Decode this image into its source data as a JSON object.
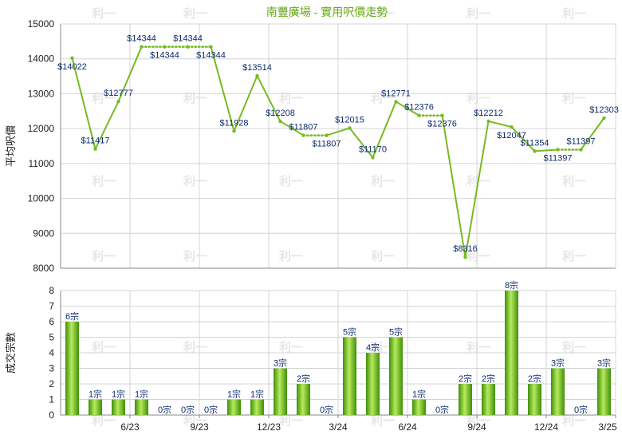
{
  "title": "南豐廣場 - 實用呎價走勢",
  "watermark": "利一",
  "colors": {
    "line": "#77bb22",
    "title": "#66aa11",
    "bar_light": "#b8ea5c",
    "bar_dark": "#3f8f0c",
    "grid": "#d4d4d4",
    "label": "#0b2a70",
    "axis_text": "#222222"
  },
  "chart_data": [
    {
      "type": "line",
      "title": "南豐廣場 - 實用呎價走勢",
      "ylabel": "平均呎價",
      "ylim": [
        8000,
        15000
      ],
      "yticks": [
        8000,
        9000,
        10000,
        11000,
        12000,
        13000,
        14000,
        15000
      ],
      "grid": true,
      "x_months": [
        1,
        2,
        3,
        4,
        5,
        6,
        7,
        8,
        9,
        10,
        11,
        12,
        13,
        14,
        15,
        16,
        17,
        18,
        19,
        20,
        21,
        22,
        23,
        24
      ],
      "points": [
        {
          "m": 1,
          "v": 14022,
          "label": "$14022",
          "pos": "below"
        },
        {
          "m": 2,
          "v": 11417,
          "label": "$11417",
          "pos": "above"
        },
        {
          "m": 3,
          "v": 12777,
          "label": "$12777",
          "pos": "above"
        },
        {
          "m": 4,
          "v": 14344,
          "label": "$14344",
          "pos": "above"
        },
        {
          "m": 5,
          "v": 14344,
          "label": "$14344",
          "pos": "below"
        },
        {
          "m": 6,
          "v": 14344,
          "label": "$14344",
          "pos": "above"
        },
        {
          "m": 7,
          "v": 14344,
          "label": "$14344",
          "pos": "below"
        },
        {
          "m": 8,
          "v": 11928,
          "label": "$11928",
          "pos": "above"
        },
        {
          "m": 9,
          "v": 13514,
          "label": "$13514",
          "pos": "above"
        },
        {
          "m": 10,
          "v": 12208,
          "label": "$12208",
          "pos": "above"
        },
        {
          "m": 11,
          "v": 11807,
          "label": "$11807",
          "pos": "above"
        },
        {
          "m": 12,
          "v": 11807,
          "label": "$11807",
          "pos": "below"
        },
        {
          "m": 13,
          "v": 12015,
          "label": "$12015",
          "pos": "above"
        },
        {
          "m": 14,
          "v": 11170,
          "label": "$11170",
          "pos": "above"
        },
        {
          "m": 15,
          "v": 12771,
          "label": "$12771",
          "pos": "above"
        },
        {
          "m": 16,
          "v": 12376,
          "label": "$12376",
          "pos": "above"
        },
        {
          "m": 17,
          "v": 12376,
          "label": "$12376",
          "pos": "below"
        },
        {
          "m": 18,
          "v": 8316,
          "label": "$8316",
          "pos": "above"
        },
        {
          "m": 19,
          "v": 12212,
          "label": "$12212",
          "pos": "above"
        },
        {
          "m": 20,
          "v": 12047,
          "label": "$12047",
          "pos": "below"
        },
        {
          "m": 21,
          "v": 11354,
          "label": "$11354",
          "pos": "above"
        },
        {
          "m": 22,
          "v": 11397,
          "label": "$11397",
          "pos": "below"
        },
        {
          "m": 23,
          "v": 11397,
          "label": "$11397",
          "pos": "above"
        },
        {
          "m": 24,
          "v": 12303,
          "label": "$12303",
          "pos": "above"
        }
      ],
      "dotted_segments": [
        [
          4,
          7
        ],
        [
          11,
          12
        ],
        [
          16,
          17
        ],
        [
          22,
          23
        ]
      ]
    },
    {
      "type": "bar",
      "ylabel": "成交宗數",
      "ylim": [
        0,
        8
      ],
      "yticks": [
        0,
        1,
        2,
        3,
        4,
        5,
        6,
        7,
        8
      ],
      "grid": true,
      "categories": [
        1,
        2,
        3,
        4,
        5,
        6,
        7,
        8,
        9,
        10,
        11,
        12,
        13,
        14,
        15,
        16,
        17,
        18,
        19,
        20,
        21,
        22,
        23,
        24
      ],
      "values": [
        6,
        1,
        1,
        1,
        0,
        0,
        0,
        1,
        1,
        3,
        2,
        0,
        5,
        4,
        5,
        1,
        0,
        2,
        2,
        8,
        2,
        3,
        0,
        3
      ],
      "value_labels": [
        "6宗",
        "1宗",
        "1宗",
        "1宗",
        "0宗",
        "0宗",
        "0宗",
        "1宗",
        "1宗",
        "3宗",
        "2宗",
        "0宗",
        "5宗",
        "4宗",
        "5宗",
        "1宗",
        "0宗",
        "2宗",
        "2宗",
        "8宗",
        "2宗",
        "3宗",
        "0宗",
        "3宗"
      ]
    }
  ],
  "x_axis": {
    "ticks": [
      {
        "m": 3.5,
        "label": "6/23"
      },
      {
        "m": 6.5,
        "label": "9/23"
      },
      {
        "m": 9.5,
        "label": "12/23"
      },
      {
        "m": 12.5,
        "label": "3/24"
      },
      {
        "m": 15.5,
        "label": "6/24"
      },
      {
        "m": 18.5,
        "label": "9/24"
      },
      {
        "m": 21.5,
        "label": "12/24"
      },
      {
        "m": 24.5,
        "label": "3/25"
      }
    ]
  }
}
